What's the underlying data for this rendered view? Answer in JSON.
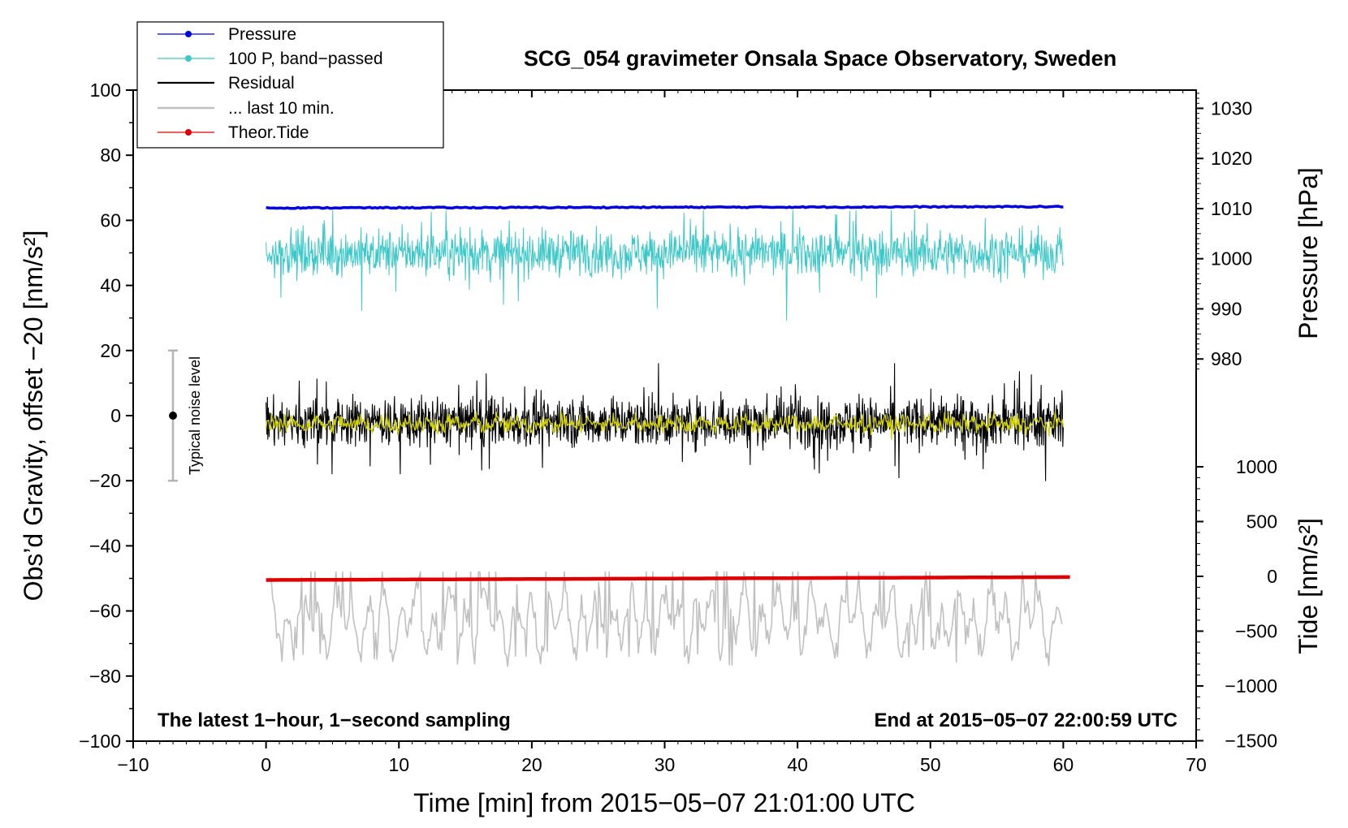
{
  "chart_data": {
    "type": "line",
    "title": "SCG_054 gravimeter Onsala Space Observatory, Sweden",
    "xlabel": "Time [min] from 2015−05−07 21:01:00 UTC",
    "xlim": [
      -10,
      70
    ],
    "xticks": [
      "−10",
      "0",
      "10",
      "20",
      "30",
      "40",
      "50",
      "60",
      "70"
    ],
    "ylabel_left": "Obs’d Gravity, offset −20 [nm/s²]",
    "ylim_left": [
      -100,
      100
    ],
    "yticks_left": [
      "100",
      "80",
      "60",
      "40",
      "20",
      "0",
      "−20",
      "−40",
      "−60",
      "−80",
      "−100"
    ],
    "ylabel_right_top": "Pressure [hPa]",
    "yticks_right_top": [
      "1030",
      "1020",
      "1010",
      "1000",
      "990",
      "980"
    ],
    "ylabel_right_bottom": "Tide [nm/s²]",
    "yticks_right_bottom": [
      "1000",
      "500",
      "0",
      "−500",
      "−1000",
      "−1500"
    ],
    "note_left": "The latest 1−hour, 1−second sampling",
    "note_right": "End at 2015−05−07 22:00:59 UTC",
    "noise_label": "Typical noise level",
    "noise_range": [
      -20,
      20
    ],
    "legend": [
      {
        "label": "Pressure",
        "color": "#0000e0"
      },
      {
        "label": "100 P, band−passed",
        "color": "#3cc8c8"
      },
      {
        "label": "Residual",
        "color": "#000000"
      },
      {
        "label": "... last 10 min.",
        "color": "#c0c0c0"
      },
      {
        "label": "Theor.Tide",
        "color": "#e00000"
      }
    ],
    "series": [
      {
        "name": "Pressure",
        "unit": "hPa",
        "x_range": [
          0,
          60
        ],
        "start": 1009.0,
        "end": 1009.3,
        "display_level": 63.8,
        "color": "#0000e0"
      },
      {
        "name": "100 P, band−passed",
        "x_range": [
          0,
          60
        ],
        "center": 50,
        "min": 29,
        "max": 63,
        "color": "#3cc8c8"
      },
      {
        "name": "Residual",
        "x_range": [
          0,
          60
        ],
        "center": -2,
        "min": -20,
        "max": 16,
        "color": "#000000"
      },
      {
        "name": "Residual smoothed",
        "x_range": [
          0,
          60
        ],
        "center": -2.5,
        "color": "#d4d400"
      },
      {
        "name": "Theor.Tide",
        "unit": "nm/s²",
        "x_range": [
          0,
          60.5
        ],
        "start": -50.5,
        "end": -49.6,
        "color": "#e00000"
      },
      {
        "name": "... last 10 min.",
        "x_range": [
          0.3,
          59.9
        ],
        "min": -77,
        "max": -48,
        "color": "#c0c0c0"
      }
    ]
  }
}
